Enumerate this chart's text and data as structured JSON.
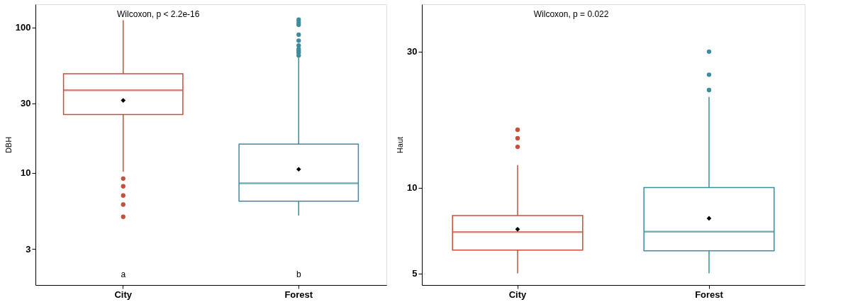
{
  "chart_data": [
    {
      "type": "box",
      "categories": [
        "City",
        "Forest"
      ],
      "ylabel": "DBH",
      "log": "y",
      "ylim": [
        1.7,
        144
      ],
      "yticks": [
        3,
        10,
        30,
        100
      ],
      "grid": false,
      "legend": false,
      "colors": [
        "#c4503c",
        "#3b8e9e"
      ],
      "boxes": [
        {
          "low": 10.2,
          "q1": 25.2,
          "median": 37,
          "q3": 48,
          "high": 112,
          "mean": 31.5,
          "outliers": [
            9.15,
            8.1,
            7.0,
            6.07,
            5.0
          ]
        },
        {
          "low": 5.1,
          "q1": 6.4,
          "median": 8.5,
          "q3": 15.8,
          "high": 62,
          "mean": 10.6,
          "outliers": [
            113,
            108,
            104,
            89,
            81,
            75,
            71,
            69,
            67,
            64
          ]
        }
      ],
      "annotations": [
        "Wilcoxon, p < 2.2e-16",
        "a",
        "b"
      ]
    },
    {
      "type": "box",
      "categories": [
        "City",
        "Forest"
      ],
      "ylabel": "Haut",
      "log": "y",
      "ylim": [
        4.55,
        44
      ],
      "yticks": [
        5,
        10,
        30
      ],
      "grid": false,
      "legend": false,
      "colors": [
        "#c4503c",
        "#3b8e9e"
      ],
      "boxes": [
        {
          "low": 5,
          "q1": 6.03,
          "median": 6.98,
          "q3": 7.98,
          "high": 12.0,
          "mean": 7.14,
          "outliers": [
            15.96,
            14.9,
            13.9
          ]
        },
        {
          "low": 5,
          "q1": 6.0,
          "median": 7.0,
          "q3": 10,
          "high": 20.8,
          "mean": 7.8,
          "outliers": [
            30,
            24.9,
            22
          ]
        }
      ],
      "annotations": [
        "Wilcoxon, p = 0.022"
      ]
    }
  ]
}
